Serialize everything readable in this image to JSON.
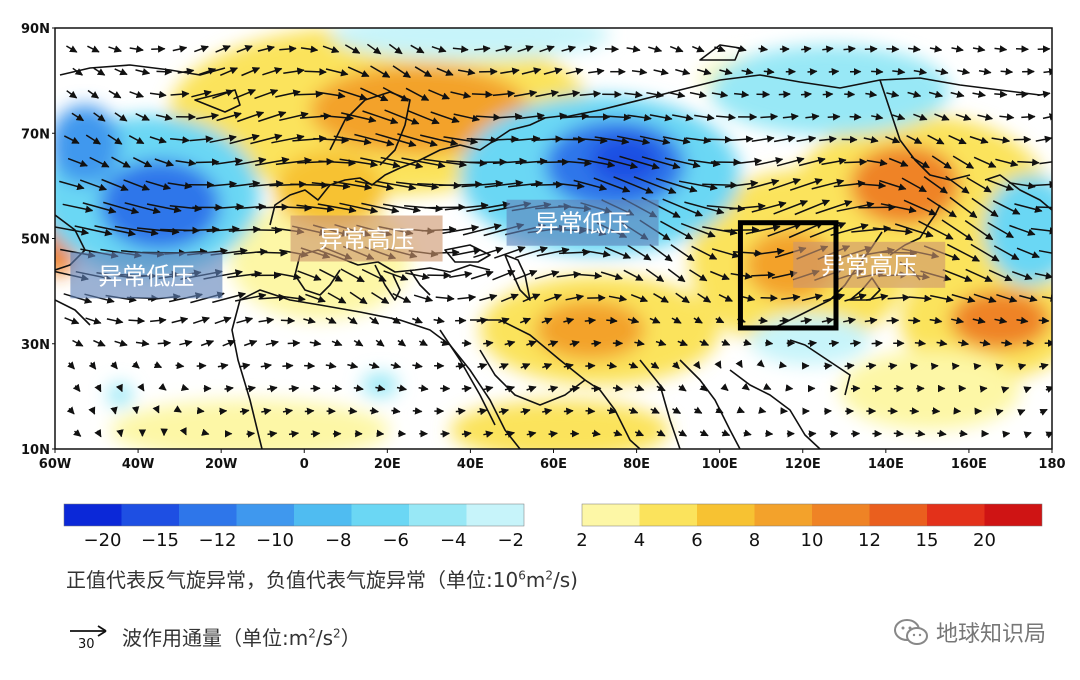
{
  "map": {
    "lat_labels": [
      "90N",
      "70N",
      "50N",
      "30N",
      "10N"
    ],
    "lon_labels": [
      "60W",
      "40W",
      "20W",
      "0",
      "20E",
      "40E",
      "60E",
      "80E",
      "100E",
      "120E",
      "140E",
      "160E",
      "180"
    ],
    "regions": [
      {
        "label": "异常低压",
        "kind": "low",
        "lon": -38,
        "lat": 43
      },
      {
        "label": "异常高压",
        "kind": "high",
        "lon": 15,
        "lat": 50
      },
      {
        "label": "异常低压",
        "kind": "low",
        "lon": 67,
        "lat": 53
      },
      {
        "label": "异常高压",
        "kind": "high",
        "lon": 136,
        "lat": 45
      }
    ],
    "box": {
      "lon_min": 105,
      "lon_max": 128,
      "lat_min": 33,
      "lat_max": 53
    }
  },
  "colorbar": {
    "negative": {
      "labels": [
        "-20",
        "-15",
        "-12",
        "-10",
        "-8",
        "-6",
        "-4",
        "-2"
      ],
      "colors": [
        "#0b28d8",
        "#1e4fe3",
        "#2e76ea",
        "#3f98ee",
        "#4fbcf1",
        "#6bd7f4",
        "#98e8f6",
        "#c7f4fa"
      ]
    },
    "positive": {
      "labels": [
        "2",
        "4",
        "6",
        "8",
        "10",
        "12",
        "15",
        "20"
      ],
      "colors": [
        "#fdf7a6",
        "#fbe35c",
        "#f7c232",
        "#f3a22b",
        "#ef8325",
        "#ea5f1e",
        "#e3311a",
        "#cf1414"
      ]
    }
  },
  "caption_prefix": "正值代表反气旋异常，负值代表气旋异常（单位:10",
  "caption_exp1": "6",
  "caption_mid": "m",
  "caption_exp2": "2",
  "caption_suffix": "/s)",
  "legend": {
    "arrow_value": "30",
    "label_prefix": "波作用通量（单位:m",
    "exp1": "2",
    "label_mid": "/s",
    "exp2": "2",
    "label_suffix": "）"
  },
  "watermark": {
    "text": "地球知识局",
    "icon": "wechat-icon"
  }
}
